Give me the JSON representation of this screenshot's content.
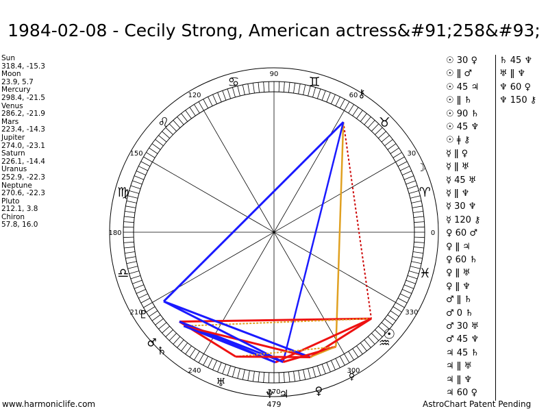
{
  "title": "1984-02-08 - Cecily Strong, American actress&#91;258&#93;",
  "planets": [
    {
      "name": "Sun",
      "value": "318.4, -15.3"
    },
    {
      "name": "Moon",
      "value": "23.9, 5.7"
    },
    {
      "name": "Mercury",
      "value": "298.4, -21.5"
    },
    {
      "name": "Venus",
      "value": "286.2, -21.9"
    },
    {
      "name": "Mars",
      "value": "223.4, -14.3"
    },
    {
      "name": "Jupiter",
      "value": "274.0, -23.1"
    },
    {
      "name": "Saturn",
      "value": "226.1, -14.4"
    },
    {
      "name": "Uranus",
      "value": "252.9, -22.3"
    },
    {
      "name": "Neptune",
      "value": "270.6, -22.3"
    },
    {
      "name": "Pluto",
      "value": "212.1, 3.8"
    },
    {
      "name": "Chiron",
      "value": "57.8, 16.0"
    }
  ],
  "wheel": {
    "degree_labels": [
      "0",
      "30",
      "60",
      "90",
      "120",
      "150",
      "180",
      "210",
      "240",
      "270",
      "300",
      "330"
    ],
    "extra_label": "479",
    "zodiac_glyphs": [
      "♈",
      "♉",
      "♊",
      "♋",
      "♌",
      "♍",
      "♎",
      "♏",
      "♐",
      "♑",
      "♒",
      "♓"
    ],
    "planet_glyphs": [
      {
        "name": "sun",
        "glyph": "☉"
      },
      {
        "name": "moon",
        "glyph": "☽"
      },
      {
        "name": "chiron",
        "glyph": "⚷"
      },
      {
        "name": "pluto",
        "glyph": "♇"
      },
      {
        "name": "mars",
        "glyph": "♂"
      },
      {
        "name": "saturn",
        "glyph": "♄"
      },
      {
        "name": "uranus",
        "glyph": "♅"
      },
      {
        "name": "neptune",
        "glyph": "♆"
      },
      {
        "name": "jupiter",
        "glyph": "♃"
      },
      {
        "name": "mercury",
        "glyph": "☿"
      },
      {
        "name": "venus",
        "glyph": "♀"
      }
    ],
    "colors": {
      "blue": "#1a1aff",
      "red": "#ee1111",
      "gold": "#e0a020",
      "dark_red": "#cc0000"
    }
  },
  "aspects": [
    {
      "text": "☉ 30 ♀"
    },
    {
      "text": "☉ ǁ ♂"
    },
    {
      "text": "☉ 45 ♃"
    },
    {
      "text": "☉ ǁ ♄"
    },
    {
      "text": "☉ 90 ♄"
    },
    {
      "text": "☉ 45 ♆"
    },
    {
      "text": "☉ ǂ ⚷"
    },
    {
      "text": "☿ ǁ ♀"
    },
    {
      "text": "☿ ǁ ♅"
    },
    {
      "text": "☿ 45 ♅"
    },
    {
      "text": "☿ ǁ ♆"
    },
    {
      "text": "☿ 30 ♆"
    },
    {
      "text": "☿ 120 ⚷"
    },
    {
      "text": "♀ 60 ♂"
    },
    {
      "text": "♀ ǁ ♃"
    },
    {
      "text": "♀ 60 ♄"
    },
    {
      "text": "♀ ǁ ♅"
    },
    {
      "text": "♀ ǁ ♆"
    },
    {
      "text": "♂ ǁ ♄"
    },
    {
      "text": "♂ 0 ♄"
    },
    {
      "text": "♂ 30 ♅"
    },
    {
      "text": "♂ 45 ♆"
    },
    {
      "text": "♃ 45 ♄"
    },
    {
      "text": "♃ ǁ ♅"
    },
    {
      "text": "♃ ǁ ♆"
    },
    {
      "text": "♃ 60 ♀"
    },
    {
      "text": "♄ 45 ♆"
    },
    {
      "text": "♅ ǁ ♆"
    },
    {
      "text": "♆ 60 ♀"
    },
    {
      "text": "♆ 150 ⚷"
    }
  ],
  "footer": {
    "left": "www.harmoniclife.com",
    "right": "AstroChart Patent Pending"
  }
}
